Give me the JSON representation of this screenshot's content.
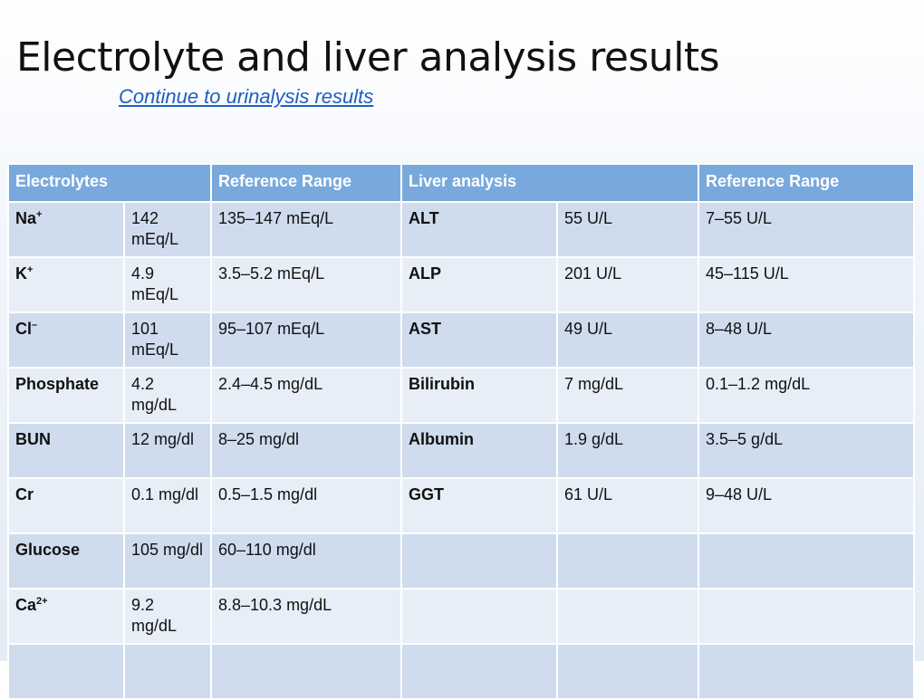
{
  "slide": {
    "title": "Electrolyte and liver analysis results",
    "link_text": "Continue to urinalysis results"
  },
  "table": {
    "headers": {
      "electrolytes": "Electrolytes",
      "ref_range_1": "Reference Range",
      "liver": "Liver analysis",
      "ref_range_2": "Reference Range"
    },
    "rows": [
      {
        "e_name": "Na",
        "e_sup": "+",
        "e_value": "142 mEq/L",
        "e_range": "135–147 mEq/L",
        "l_name": "ALT",
        "l_value": "55 U/L",
        "l_range": "7–55 U/L"
      },
      {
        "e_name": "K",
        "e_sup": "+",
        "e_value": "4.9 mEq/L",
        "e_range": "3.5–5.2 mEq/L",
        "l_name": "ALP",
        "l_value": "201 U/L",
        "l_range": "45–115 U/L"
      },
      {
        "e_name": "Cl",
        "e_sup": "–",
        "e_value": "101 mEq/L",
        "e_range": "95–107 mEq/L",
        "l_name": "AST",
        "l_value": "49 U/L",
        "l_range": "8–48 U/L"
      },
      {
        "e_name": "Phosphate",
        "e_sup": "",
        "e_value": "4.2 mg/dL",
        "e_range": "2.4–4.5 mg/dL",
        "l_name": "Bilirubin",
        "l_value": "7 mg/dL",
        "l_range": "0.1–1.2 mg/dL"
      },
      {
        "e_name": "BUN",
        "e_sup": "",
        "e_value": "12 mg/dl",
        "e_range": "8–25 mg/dl",
        "l_name": "Albumin",
        "l_value": "1.9 g/dL",
        "l_range": "3.5–5 g/dL"
      },
      {
        "e_name": "Cr",
        "e_sup": "",
        "e_value": "0.1 mg/dl",
        "e_range": "0.5–1.5 mg/dl",
        "l_name": "GGT",
        "l_value": "61 U/L",
        "l_range": "9–48 U/L"
      },
      {
        "e_name": "Glucose",
        "e_sup": "",
        "e_value": "105 mg/dl",
        "e_range": "60–110 mg/dl",
        "l_name": "",
        "l_value": "",
        "l_range": ""
      },
      {
        "e_name": "Ca",
        "e_sup": "2+",
        "e_value": "9.2 mg/dL",
        "e_range": "8.8–10.3 mg/dL",
        "l_name": "",
        "l_value": "",
        "l_range": ""
      },
      {
        "e_name": "",
        "e_sup": "",
        "e_value": "",
        "e_range": "",
        "l_name": "",
        "l_value": "",
        "l_range": ""
      }
    ]
  }
}
